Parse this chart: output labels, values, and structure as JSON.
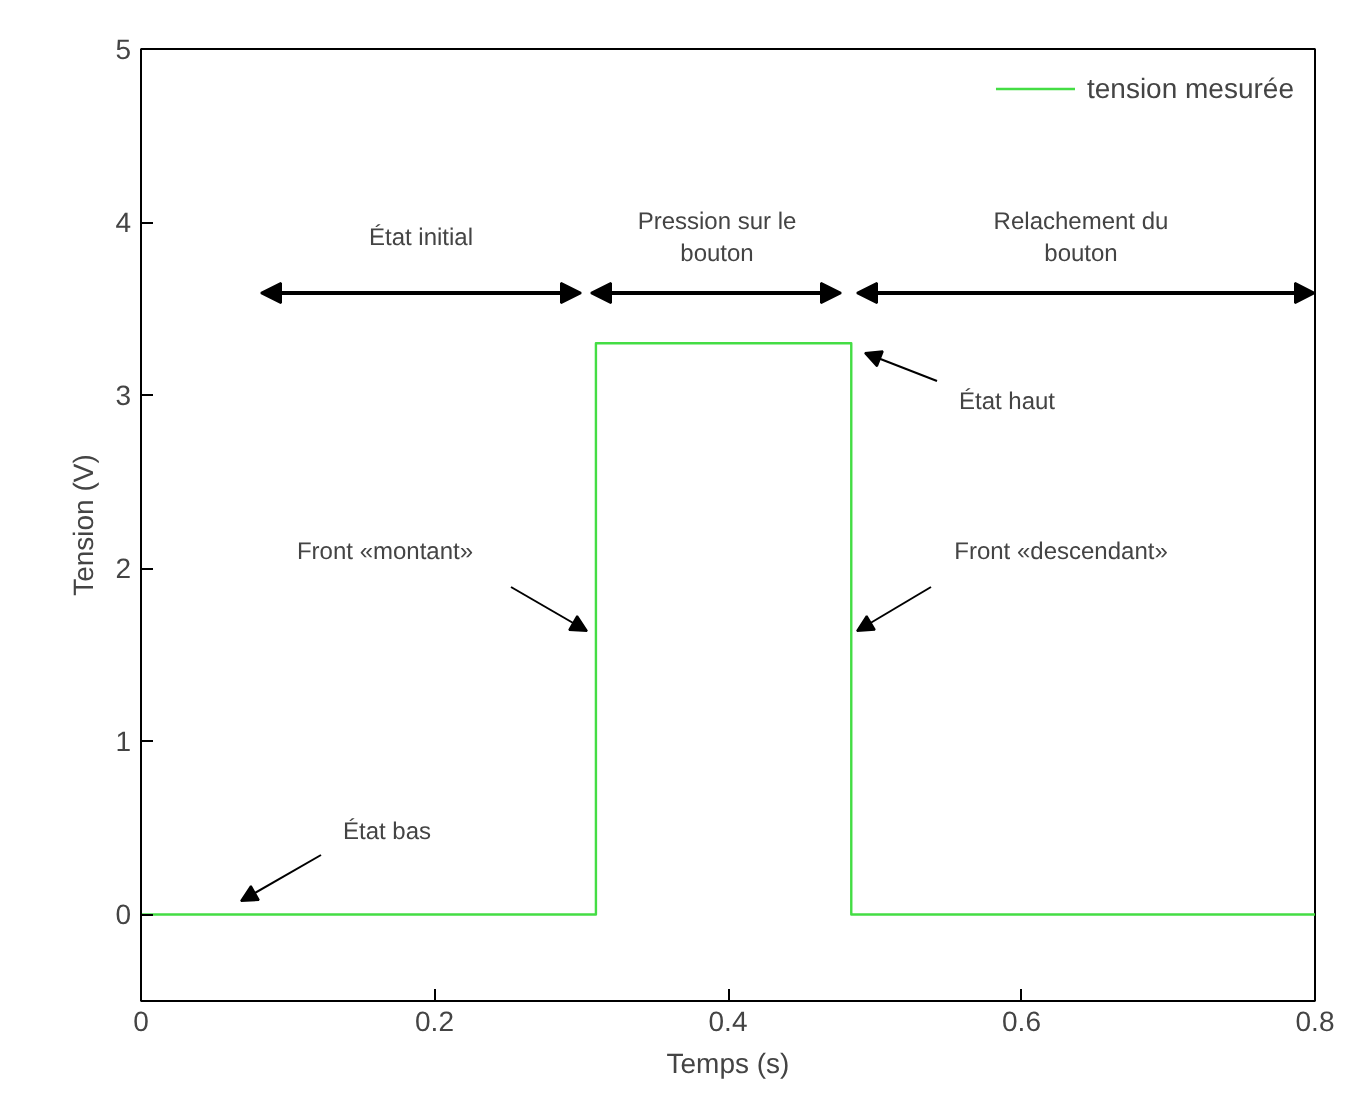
{
  "chart_data": {
    "type": "step",
    "xlabel": "Temps (s)",
    "ylabel": "Tension (V)",
    "x": [
      0,
      0.31,
      0.484,
      0.8
    ],
    "series": [
      {
        "name": "tension mesurée",
        "color": "#44dd44",
        "values": [
          0,
          3.3,
          0,
          0
        ]
      }
    ],
    "xlim": [
      0,
      0.8
    ],
    "xticks": [
      0,
      0.2,
      0.4,
      0.6,
      0.8
    ],
    "ylim": [
      -0.5,
      5
    ],
    "yticks": [
      0,
      1,
      2,
      3,
      4,
      5
    ],
    "grid": false,
    "legend": "top right",
    "marker": "none",
    "line_style": "solid",
    "annotations": [
      "État initial",
      "Pression sur le\nbouton",
      "Relachement du\nbouton",
      "État bas",
      "Front «montant»",
      "État haut",
      "Front «descendant»"
    ]
  }
}
